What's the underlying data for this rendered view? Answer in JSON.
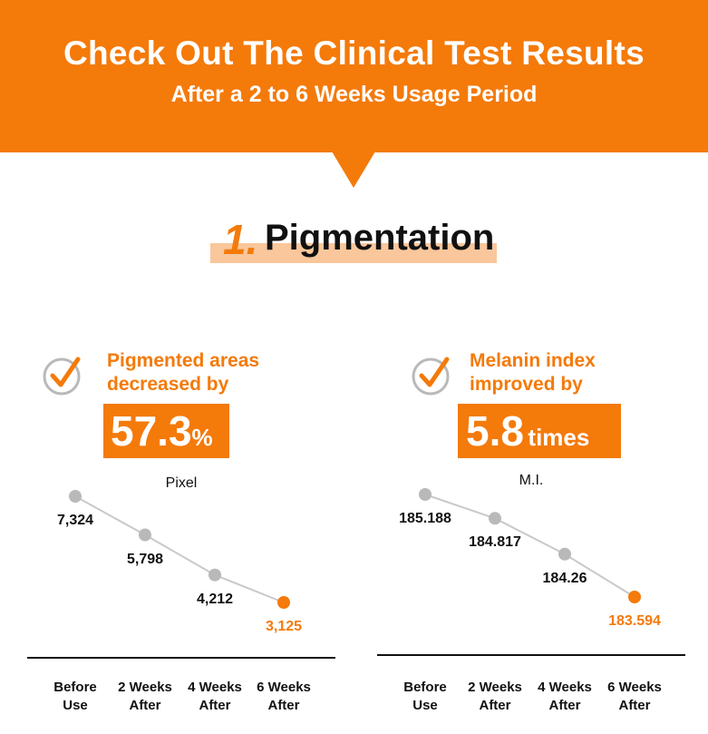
{
  "banner": {
    "title": "Check Out The Clinical Test Results",
    "subtitle": "After a 2 to 6 Weeks Usage Period"
  },
  "section": {
    "number": "1.",
    "title": "Pigmentation"
  },
  "colors": {
    "accent": "#f47a0a",
    "highlight": "#f9c79b",
    "point": "#b9b9b9",
    "line": "#c9c9c9"
  },
  "icons": {
    "metric": "check-circle-icon"
  },
  "metrics": [
    {
      "caption_lines": [
        "Pigmented areas",
        "decreased by"
      ],
      "value": "57.3",
      "unit": "%"
    },
    {
      "caption_lines": [
        "Melanin index",
        "improved by"
      ],
      "value": "5.8",
      "unit": "times"
    }
  ],
  "chart_data": [
    {
      "type": "line",
      "ylabel": "Pixel",
      "categories": [
        "Before Use",
        "2 Weeks After",
        "4 Weeks After",
        "6 Weeks After"
      ],
      "category_lines": [
        [
          "Before",
          "Use"
        ],
        [
          "2 Weeks",
          "After"
        ],
        [
          "4 Weeks",
          "After"
        ],
        [
          "6 Weeks",
          "After"
        ]
      ],
      "values": [
        7324,
        5798,
        4212,
        3125
      ],
      "value_labels": [
        "7,324",
        "5,798",
        "4,212",
        "3,125"
      ],
      "highlight_index": 3,
      "grid": false,
      "legend": "none"
    },
    {
      "type": "line",
      "ylabel": "M.I.",
      "categories": [
        "Before Use",
        "2 Weeks After",
        "4 Weeks After",
        "6 Weeks After"
      ],
      "category_lines": [
        [
          "Before",
          "Use"
        ],
        [
          "2 Weeks",
          "After"
        ],
        [
          "4 Weeks",
          "After"
        ],
        [
          "6 Weeks",
          "After"
        ]
      ],
      "values": [
        185.188,
        184.817,
        184.26,
        183.594
      ],
      "value_labels": [
        "185.188",
        "184.817",
        "184.26",
        "183.594"
      ],
      "highlight_index": 3,
      "grid": false,
      "legend": "none"
    }
  ]
}
